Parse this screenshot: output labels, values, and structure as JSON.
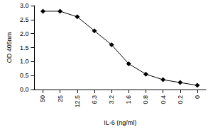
{
  "chart_data": {
    "type": "line",
    "x_label": "IL-6 (ng/ml)",
    "y_label": "OD 405nm",
    "categories": [
      "50",
      "25",
      "12.5",
      "6.3",
      "3.2",
      "1.6",
      "0.8",
      "0.4",
      "0.2",
      "0"
    ],
    "values": [
      2.8,
      2.8,
      2.6,
      2.1,
      1.6,
      0.92,
      0.55,
      0.35,
      0.25,
      0.15
    ],
    "color": "#000000",
    "marker": "diamond",
    "line_style": "solid",
    "ylim": [
      0,
      3
    ],
    "yticks": [
      {
        "value": 0,
        "label": "0.0"
      },
      {
        "value": 0.5,
        "label": "0.5"
      },
      {
        "value": 1,
        "label": "1.0"
      },
      {
        "value": 1.5,
        "label": "1.5"
      },
      {
        "value": 2,
        "label": "2.0"
      },
      {
        "value": 2.5,
        "label": "2.5"
      },
      {
        "value": 3,
        "label": "3.0"
      }
    ],
    "grid": false
  }
}
